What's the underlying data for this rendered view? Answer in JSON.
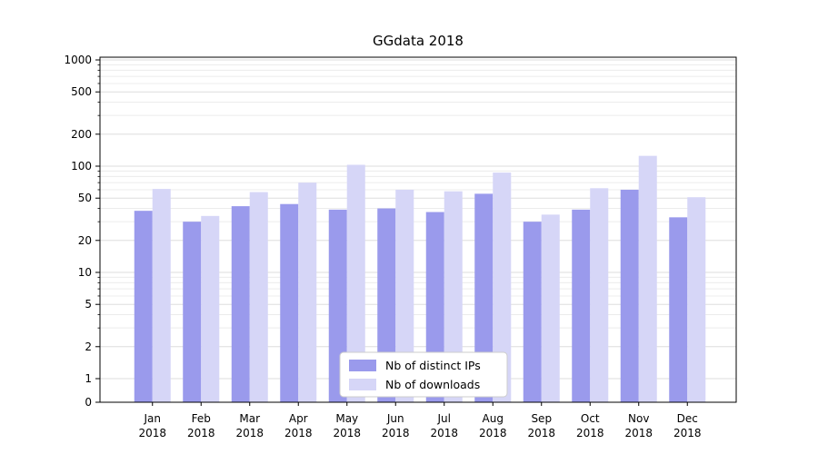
{
  "figure": {
    "background": "#ffffff",
    "plot_border_color": "#000000",
    "major_grid_color": "#dddddd",
    "minor_grid_color": "#ececec"
  },
  "chart_data": {
    "type": "bar",
    "title": "GGdata 2018",
    "categories": [
      "Jan",
      "Feb",
      "Mar",
      "Apr",
      "May",
      "Jun",
      "Jul",
      "Aug",
      "Sep",
      "Oct",
      "Nov",
      "Dec"
    ],
    "category_year": "2018",
    "series": [
      {
        "name": "Nb of distinct IPs",
        "color": "#9a9aec",
        "values": [
          38,
          30,
          42,
          44,
          39,
          40,
          37,
          55,
          30,
          39,
          60,
          33
        ]
      },
      {
        "name": "Nb of downloads",
        "color": "#d6d6f7",
        "values": [
          61,
          34,
          57,
          70,
          103,
          60,
          58,
          87,
          35,
          62,
          125,
          51
        ]
      }
    ],
    "y_scale": "symlog",
    "y_ticks": [
      1000,
      500,
      200,
      100,
      50,
      20,
      10,
      5,
      2,
      1,
      0
    ],
    "ylim": [
      0,
      1200
    ],
    "grid": "horizontal-major-and-minor",
    "legend_position": "lower-center"
  }
}
